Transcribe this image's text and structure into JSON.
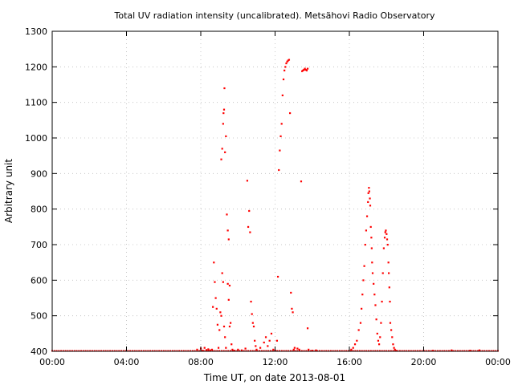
{
  "chart_data": {
    "type": "scatter",
    "title": "Total UV radiation intensity (uncalibrated). Metsähovi Radio Observatory",
    "xlabel": "Time UT, on date 2013-08-01",
    "ylabel": "Arbitrary unit",
    "x_unit": "hours UT",
    "xlim": [
      0,
      24
    ],
    "ylim": [
      400,
      1300
    ],
    "x_tick_values": [
      0,
      4,
      8,
      12,
      16,
      20,
      24
    ],
    "x_tick_labels": [
      "00:00",
      "04:00",
      "08:00",
      "12:00",
      "16:00",
      "20:00",
      "00:00"
    ],
    "y_ticks": [
      400,
      500,
      600,
      700,
      800,
      900,
      1000,
      1100,
      1200,
      1300
    ],
    "grid": true,
    "grid_style": "dotted",
    "series": [
      {
        "color": "#ff0000",
        "baseline_value": 400,
        "baseline_range": [
          0,
          24
        ],
        "points": [
          [
            7.8,
            405
          ],
          [
            8.0,
            408
          ],
          [
            8.1,
            402
          ],
          [
            8.2,
            410
          ],
          [
            8.3,
            404
          ],
          [
            8.4,
            406
          ],
          [
            8.5,
            403
          ],
          [
            8.6,
            405
          ],
          [
            8.65,
            525
          ],
          [
            8.7,
            650
          ],
          [
            8.75,
            595
          ],
          [
            8.8,
            550
          ],
          [
            8.85,
            520
          ],
          [
            8.9,
            475
          ],
          [
            8.95,
            410
          ],
          [
            9.0,
            460
          ],
          [
            9.05,
            510
          ],
          [
            9.1,
            500
          ],
          [
            9.15,
            620
          ],
          [
            9.2,
            595
          ],
          [
            9.25,
            470
          ],
          [
            9.3,
            440
          ],
          [
            9.35,
            410
          ],
          [
            9.1,
            940
          ],
          [
            9.15,
            970
          ],
          [
            9.2,
            1040
          ],
          [
            9.22,
            1070
          ],
          [
            9.25,
            1080
          ],
          [
            9.27,
            1140
          ],
          [
            9.3,
            960
          ],
          [
            9.35,
            1005
          ],
          [
            9.4,
            785
          ],
          [
            9.45,
            740
          ],
          [
            9.5,
            715
          ],
          [
            9.45,
            590
          ],
          [
            9.55,
            585
          ],
          [
            9.5,
            545
          ],
          [
            9.6,
            480
          ],
          [
            9.55,
            470
          ],
          [
            9.65,
            420
          ],
          [
            9.7,
            405
          ],
          [
            9.8,
            402
          ],
          [
            10.0,
            405
          ],
          [
            10.2,
            403
          ],
          [
            10.4,
            408
          ],
          [
            10.5,
            880
          ],
          [
            10.55,
            750
          ],
          [
            10.6,
            795
          ],
          [
            10.65,
            735
          ],
          [
            10.7,
            540
          ],
          [
            10.75,
            505
          ],
          [
            10.8,
            480
          ],
          [
            10.85,
            470
          ],
          [
            10.9,
            430
          ],
          [
            10.95,
            415
          ],
          [
            11.0,
            405
          ],
          [
            11.2,
            410
          ],
          [
            11.4,
            425
          ],
          [
            11.5,
            440
          ],
          [
            11.6,
            415
          ],
          [
            11.7,
            430
          ],
          [
            11.8,
            450
          ],
          [
            11.9,
            405
          ],
          [
            12.0,
            402
          ],
          [
            12.1,
            430
          ],
          [
            12.15,
            610
          ],
          [
            12.2,
            910
          ],
          [
            12.25,
            965
          ],
          [
            12.3,
            1005
          ],
          [
            12.35,
            1040
          ],
          [
            12.4,
            1120
          ],
          [
            12.45,
            1165
          ],
          [
            12.5,
            1190
          ],
          [
            12.55,
            1200
          ],
          [
            12.6,
            1210
          ],
          [
            12.65,
            1215
          ],
          [
            12.7,
            1218
          ],
          [
            12.75,
            1220
          ],
          [
            12.8,
            1070
          ],
          [
            12.85,
            565
          ],
          [
            12.9,
            520
          ],
          [
            12.95,
            510
          ],
          [
            13.0,
            405
          ],
          [
            13.05,
            410
          ],
          [
            13.2,
            408
          ],
          [
            13.3,
            405
          ],
          [
            13.4,
            878
          ],
          [
            13.45,
            1188
          ],
          [
            13.5,
            1190
          ],
          [
            13.55,
            1192
          ],
          [
            13.6,
            1195
          ],
          [
            13.65,
            1192
          ],
          [
            13.7,
            1190
          ],
          [
            13.75,
            1195
          ],
          [
            13.75,
            465
          ],
          [
            13.8,
            405
          ],
          [
            14.0,
            402
          ],
          [
            14.2,
            403
          ],
          [
            16.1,
            405
          ],
          [
            16.2,
            410
          ],
          [
            16.3,
            420
          ],
          [
            16.4,
            430
          ],
          [
            16.5,
            460
          ],
          [
            16.6,
            480
          ],
          [
            16.65,
            520
          ],
          [
            16.7,
            560
          ],
          [
            16.75,
            600
          ],
          [
            16.8,
            640
          ],
          [
            16.85,
            700
          ],
          [
            16.9,
            740
          ],
          [
            16.95,
            780
          ],
          [
            17.0,
            820
          ],
          [
            17.02,
            845
          ],
          [
            17.05,
            860
          ],
          [
            17.07,
            850
          ],
          [
            17.1,
            830
          ],
          [
            17.12,
            810
          ],
          [
            17.15,
            750
          ],
          [
            17.18,
            720
          ],
          [
            17.2,
            690
          ],
          [
            17.22,
            650
          ],
          [
            17.25,
            620
          ],
          [
            17.3,
            590
          ],
          [
            17.35,
            560
          ],
          [
            17.4,
            530
          ],
          [
            17.45,
            490
          ],
          [
            17.5,
            450
          ],
          [
            17.55,
            430
          ],
          [
            17.6,
            420
          ],
          [
            17.65,
            440
          ],
          [
            17.7,
            480
          ],
          [
            17.75,
            540
          ],
          [
            17.8,
            620
          ],
          [
            17.85,
            690
          ],
          [
            17.9,
            720
          ],
          [
            17.93,
            735
          ],
          [
            17.96,
            740
          ],
          [
            18.0,
            730
          ],
          [
            18.03,
            715
          ],
          [
            18.06,
            700
          ],
          [
            18.1,
            650
          ],
          [
            18.12,
            620
          ],
          [
            18.15,
            580
          ],
          [
            18.18,
            540
          ],
          [
            18.2,
            480
          ],
          [
            18.25,
            460
          ],
          [
            18.3,
            440
          ],
          [
            18.35,
            420
          ],
          [
            18.4,
            410
          ],
          [
            18.45,
            405
          ],
          [
            18.5,
            402
          ],
          [
            20.5,
            402
          ],
          [
            21.5,
            403
          ],
          [
            22.5,
            402
          ],
          [
            23.0,
            403
          ]
        ]
      }
    ]
  }
}
